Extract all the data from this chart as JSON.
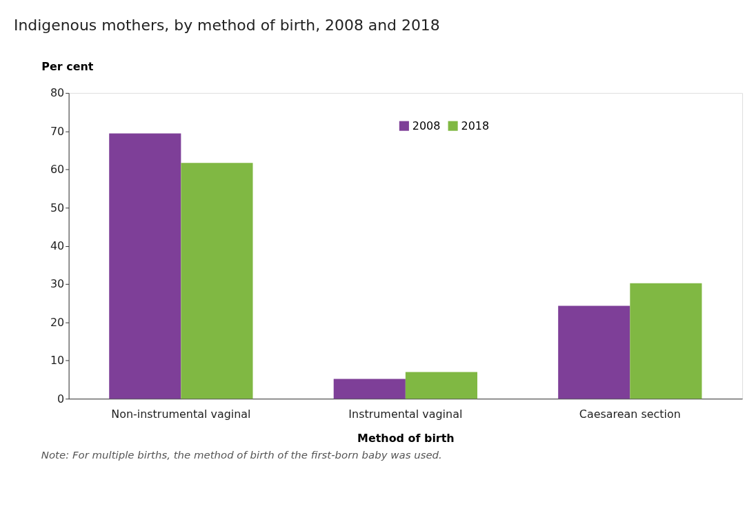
{
  "chart_data": {
    "type": "bar",
    "title": "Indigenous mothers, by method of birth, 2008 and 2018",
    "ylabel": "Per cent",
    "xlabel": "Method of birth",
    "categories": [
      "Non-instrumental vaginal",
      "Instrumental vaginal",
      "Caesarean section"
    ],
    "series": [
      {
        "name": "2008",
        "color": "#7e3f98",
        "values": [
          69.4,
          5.2,
          24.3
        ]
      },
      {
        "name": "2018",
        "color": "#80b843",
        "values": [
          61.7,
          7.0,
          30.2
        ]
      }
    ],
    "ylim": [
      0,
      80
    ],
    "yticks": [
      0,
      10,
      20,
      30,
      40,
      50,
      60,
      70,
      80
    ],
    "grid": false,
    "legend": "top",
    "annotations": [
      "Note: For multiple births, the method of birth of the first-born baby was used."
    ]
  }
}
